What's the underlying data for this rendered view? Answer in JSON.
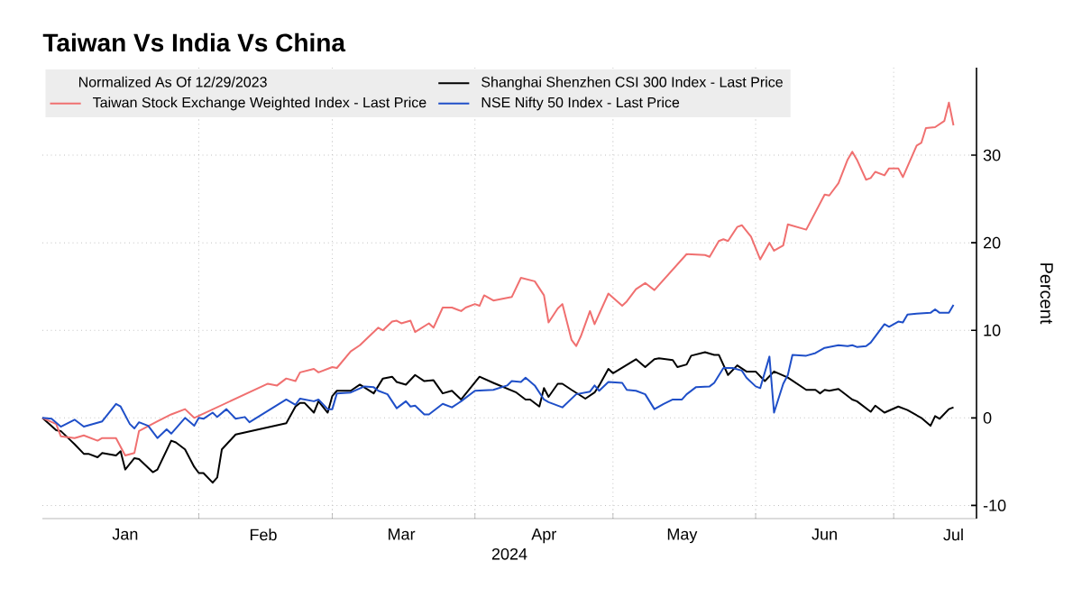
{
  "chart_data": {
    "type": "line",
    "title": "Taiwan Vs India Vs China",
    "ylabel": "Percent",
    "xlabel": "2024",
    "legend_title": "Normalized As Of 12/29/2023",
    "legend": "top left",
    "grid": true,
    "marker": "none",
    "line_style": "solid",
    "xlim": [
      "2023-12-29",
      "2024-07-19"
    ],
    "xticks": [
      {
        "value": "2024-02-01",
        "label": null
      },
      {
        "value": "2024-03-01",
        "label": null
      },
      {
        "value": "2024-04-01",
        "label": null
      },
      {
        "value": "2024-05-01",
        "label": null
      },
      {
        "value": "2024-06-01",
        "label": null
      },
      {
        "value": "2024-07-01",
        "label": null
      },
      {
        "value": "2024-01-16",
        "label": "Jan"
      },
      {
        "value": "2024-02-15",
        "label": "Feb"
      },
      {
        "value": "2024-03-16",
        "label": "Mar"
      },
      {
        "value": "2024-04-16",
        "label": "Apr"
      },
      {
        "value": "2024-05-16",
        "label": "May"
      },
      {
        "value": "2024-06-16",
        "label": "Jun"
      },
      {
        "value": "2024-07-14",
        "label": "Jul"
      }
    ],
    "ylim": [
      -11.5,
      40
    ],
    "yticks": [
      -10,
      0,
      10,
      20,
      30
    ],
    "series": [
      {
        "name": "Shanghai Shenzhen CSI 300 Index - Last Price",
        "color": "#000000",
        "x": [
          "2023-12-29",
          "2024-01-01",
          "2024-01-02",
          "2024-01-04",
          "2024-01-05",
          "2024-01-07",
          "2024-01-08",
          "2024-01-10",
          "2024-01-11",
          "2024-01-14",
          "2024-01-15",
          "2024-01-16",
          "2024-01-18",
          "2024-01-19",
          "2024-01-22",
          "2024-01-23",
          "2024-01-26",
          "2024-01-27",
          "2024-01-29",
          "2024-01-31",
          "2024-02-01",
          "2024-02-02",
          "2024-02-04",
          "2024-02-05",
          "2024-02-06",
          "2024-02-09",
          "2024-02-20",
          "2024-02-22",
          "2024-02-23",
          "2024-02-24",
          "2024-02-26",
          "2024-02-27",
          "2024-02-29",
          "2024-03-01",
          "2024-03-02",
          "2024-03-05",
          "2024-03-07",
          "2024-03-10",
          "2024-03-12",
          "2024-03-14",
          "2024-03-15",
          "2024-03-17",
          "2024-03-19",
          "2024-03-21",
          "2024-03-23",
          "2024-03-25",
          "2024-03-27",
          "2024-03-29",
          "2024-04-02",
          "2024-04-05",
          "2024-04-10",
          "2024-04-12",
          "2024-04-13",
          "2024-04-15",
          "2024-04-16",
          "2024-04-17",
          "2024-04-19",
          "2024-04-20",
          "2024-04-22",
          "2024-04-25",
          "2024-04-27",
          "2024-04-28",
          "2024-04-30",
          "2024-05-01",
          "2024-05-06",
          "2024-05-08",
          "2024-05-10",
          "2024-05-11",
          "2024-05-14",
          "2024-05-15",
          "2024-05-17",
          "2024-05-18",
          "2024-05-21",
          "2024-05-23",
          "2024-05-24",
          "2024-05-26",
          "2024-05-28",
          "2024-05-30",
          "2024-06-01",
          "2024-06-03",
          "2024-06-05",
          "2024-06-08",
          "2024-06-12",
          "2024-06-14",
          "2024-06-15",
          "2024-06-16",
          "2024-06-17",
          "2024-06-19",
          "2024-06-22",
          "2024-06-23",
          "2024-06-26",
          "2024-06-27",
          "2024-06-29",
          "2024-07-02",
          "2024-07-04",
          "2024-07-07",
          "2024-07-09",
          "2024-07-10",
          "2024-07-11",
          "2024-07-13",
          "2024-07-14"
        ],
        "values": [
          0,
          -1.4,
          -1.5,
          -2.5,
          -3.0,
          -4.1,
          -4.1,
          -4.5,
          -4.0,
          -4.3,
          -3.8,
          -5.9,
          -4.6,
          -4.7,
          -6.2,
          -5.9,
          -2.6,
          -2.8,
          -3.6,
          -5.6,
          -6.3,
          -6.3,
          -7.4,
          -6.8,
          -3.6,
          -1.9,
          -0.6,
          1.3,
          1.7,
          1.7,
          0.6,
          1.9,
          0.6,
          2.5,
          3.1,
          3.1,
          3.8,
          2.8,
          4.5,
          4.7,
          4.1,
          3.8,
          4.9,
          4.2,
          4.3,
          2.8,
          3.1,
          2.1,
          4.7,
          4.0,
          2.9,
          2.1,
          2.1,
          1.3,
          3.4,
          2.4,
          3.9,
          3.9,
          3.2,
          2.2,
          2.9,
          3.7,
          5.6,
          5.1,
          6.7,
          5.8,
          6.7,
          6.8,
          6.6,
          5.8,
          6.1,
          7.1,
          7.5,
          7.2,
          7.2,
          4.9,
          6.0,
          5.3,
          5.3,
          4.2,
          5.3,
          4.6,
          3.2,
          3.2,
          2.8,
          3.2,
          3.1,
          3.3,
          2.1,
          1.9,
          0.7,
          1.4,
          0.6,
          1.3,
          0.9,
          0,
          -0.9,
          0.2,
          -0.1,
          1.0,
          1.2
        ]
      },
      {
        "name": "Taiwan Stock Exchange Weighted Index - Last Price",
        "color": "#f07070",
        "x": [
          "2023-12-29",
          "2024-01-01",
          "2024-01-02",
          "2024-01-05",
          "2024-01-07",
          "2024-01-10",
          "2024-01-11",
          "2024-01-14",
          "2024-01-16",
          "2024-01-18",
          "2024-01-19",
          "2024-01-23",
          "2024-01-26",
          "2024-01-29",
          "2024-01-31",
          "2024-02-16",
          "2024-02-18",
          "2024-02-20",
          "2024-02-22",
          "2024-02-23",
          "2024-02-26",
          "2024-02-27",
          "2024-03-01",
          "2024-03-02",
          "2024-03-05",
          "2024-03-07",
          "2024-03-11",
          "2024-03-12",
          "2024-03-14",
          "2024-03-15",
          "2024-03-16",
          "2024-03-18",
          "2024-03-19",
          "2024-03-22",
          "2024-03-23",
          "2024-03-25",
          "2024-03-27",
          "2024-03-29",
          "2024-03-30",
          "2024-04-01",
          "2024-04-02",
          "2024-04-03",
          "2024-04-05",
          "2024-04-09",
          "2024-04-11",
          "2024-04-14",
          "2024-04-16",
          "2024-04-17",
          "2024-04-19",
          "2024-04-20",
          "2024-04-22",
          "2024-04-23",
          "2024-04-24",
          "2024-04-26",
          "2024-04-27",
          "2024-04-30",
          "2024-05-03",
          "2024-05-04",
          "2024-05-06",
          "2024-05-08",
          "2024-05-10",
          "2024-05-17",
          "2024-05-21",
          "2024-05-22",
          "2024-05-24",
          "2024-05-25",
          "2024-05-26",
          "2024-05-28",
          "2024-05-29",
          "2024-05-31",
          "2024-06-02",
          "2024-06-04",
          "2024-06-05",
          "2024-06-07",
          "2024-06-08",
          "2024-06-12",
          "2024-06-16",
          "2024-06-17",
          "2024-06-19",
          "2024-06-21",
          "2024-06-22",
          "2024-06-23",
          "2024-06-25",
          "2024-06-26",
          "2024-06-27",
          "2024-06-29",
          "2024-06-30",
          "2024-07-02",
          "2024-07-03",
          "2024-07-06",
          "2024-07-07",
          "2024-07-08",
          "2024-07-10",
          "2024-07-12",
          "2024-07-13",
          "2024-07-14"
        ],
        "values": [
          0,
          -0.7,
          -2.1,
          -2.3,
          -2.0,
          -2.6,
          -2.3,
          -2.3,
          -4.3,
          -4.0,
          -1.5,
          -0.4,
          0.4,
          1.0,
          0,
          3.9,
          3.7,
          4.5,
          4.2,
          5.2,
          5.6,
          5.2,
          5.8,
          5.7,
          7.6,
          8.3,
          10.3,
          10.0,
          11.0,
          11.1,
          10.8,
          11.1,
          9.8,
          10.8,
          10.3,
          12.6,
          12.6,
          12.2,
          12.6,
          13.0,
          12.8,
          14.0,
          13.4,
          13.8,
          16.0,
          15.6,
          14.0,
          10.9,
          12.5,
          13.0,
          8.9,
          8.2,
          9.3,
          12.2,
          10.7,
          14.2,
          12.8,
          13.3,
          14.7,
          15.4,
          14.6,
          18.7,
          18.6,
          18.4,
          20.2,
          20.4,
          20.2,
          21.8,
          22.0,
          20.7,
          18.1,
          20.0,
          19.1,
          19.7,
          22.1,
          21.5,
          25.5,
          25.4,
          26.8,
          29.5,
          30.4,
          29.5,
          27.2,
          27.4,
          28.1,
          27.7,
          28.5,
          28.5,
          27.5,
          31.1,
          31.4,
          33.1,
          33.2,
          33.9,
          36.0,
          33.4
        ]
      },
      {
        "name": "NSE Nifty 50 Index - Last Price",
        "color": "#1f4fc8",
        "x": [
          "2023-12-29",
          "2023-12-31",
          "2024-01-02",
          "2024-01-05",
          "2024-01-07",
          "2024-01-11",
          "2024-01-14",
          "2024-01-15",
          "2024-01-17",
          "2024-01-18",
          "2024-01-19",
          "2024-01-21",
          "2024-01-23",
          "2024-01-25",
          "2024-01-26",
          "2024-01-29",
          "2024-01-31",
          "2024-02-01",
          "2024-02-02",
          "2024-02-04",
          "2024-02-05",
          "2024-02-07",
          "2024-02-09",
          "2024-02-11",
          "2024-02-12",
          "2024-02-20",
          "2024-02-22",
          "2024-02-23",
          "2024-02-26",
          "2024-02-27",
          "2024-02-29",
          "2024-03-01",
          "2024-03-02",
          "2024-03-05",
          "2024-03-08",
          "2024-03-10",
          "2024-03-11",
          "2024-03-13",
          "2024-03-15",
          "2024-03-17",
          "2024-03-18",
          "2024-03-19",
          "2024-03-21",
          "2024-03-22",
          "2024-03-25",
          "2024-03-27",
          "2024-03-29",
          "2024-04-01",
          "2024-04-05",
          "2024-04-08",
          "2024-04-09",
          "2024-04-11",
          "2024-04-12",
          "2024-04-14",
          "2024-04-16",
          "2024-04-17",
          "2024-04-20",
          "2024-04-23",
          "2024-04-26",
          "2024-04-27",
          "2024-04-28",
          "2024-04-30",
          "2024-05-03",
          "2024-05-04",
          "2024-05-06",
          "2024-05-08",
          "2024-05-10",
          "2024-05-12",
          "2024-05-14",
          "2024-05-16",
          "2024-05-17",
          "2024-05-19",
          "2024-05-22",
          "2024-05-23",
          "2024-05-25",
          "2024-05-27",
          "2024-05-29",
          "2024-05-30",
          "2024-06-01",
          "2024-06-02",
          "2024-06-04",
          "2024-06-05",
          "2024-06-07",
          "2024-06-08",
          "2024-06-09",
          "2024-06-12",
          "2024-06-14",
          "2024-06-16",
          "2024-06-19",
          "2024-06-21",
          "2024-06-22",
          "2024-06-23",
          "2024-06-25",
          "2024-06-26",
          "2024-06-29",
          "2024-06-30",
          "2024-07-02",
          "2024-07-03",
          "2024-07-04",
          "2024-07-06",
          "2024-07-09",
          "2024-07-10",
          "2024-07-11",
          "2024-07-13",
          "2024-07-14"
        ],
        "values": [
          0,
          -0.1,
          -1.0,
          -0.2,
          -1.0,
          -0.4,
          1.6,
          1.3,
          -0.7,
          -1.2,
          -0.5,
          -0.9,
          -2.3,
          -1.3,
          -1.8,
          0,
          -0.9,
          0,
          -0.1,
          0.6,
          0.1,
          1.0,
          -0.1,
          0.1,
          -0.5,
          2.1,
          1.5,
          2.2,
          1.9,
          2.1,
          1.0,
          1.0,
          2.8,
          2.9,
          3.6,
          3.5,
          3.1,
          2.7,
          1.1,
          1.9,
          1.3,
          1.4,
          0.4,
          0.4,
          1.6,
          1.2,
          1.9,
          3.1,
          3.2,
          3.7,
          4.2,
          4.1,
          4.6,
          3.7,
          2.1,
          1.8,
          1.2,
          2.7,
          3.0,
          3.7,
          3.1,
          4.1,
          4.0,
          3.2,
          3.1,
          2.7,
          1.0,
          1.6,
          2.1,
          2.1,
          2.7,
          3.5,
          3.6,
          4.0,
          5.7,
          5.7,
          5.4,
          4.6,
          3.6,
          3.4,
          7.0,
          0.6,
          3.9,
          4.9,
          7.2,
          7.1,
          7.4,
          8.0,
          8.3,
          8.2,
          8.3,
          8.1,
          8.2,
          8.6,
          10.7,
          10.4,
          11.0,
          10.9,
          11.8,
          11.9,
          12.0,
          12.4,
          12.0,
          12.0,
          12.9
        ]
      }
    ]
  }
}
